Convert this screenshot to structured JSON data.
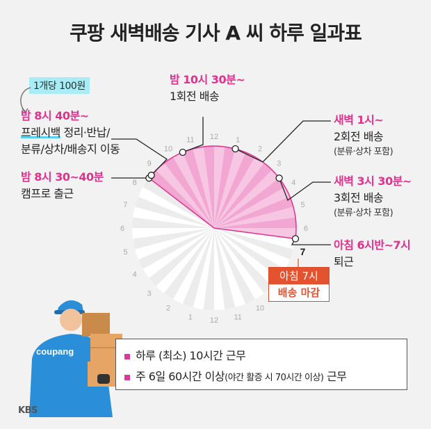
{
  "title": "쿠팡 새벽배송 기사 A 씨 하루 일과표",
  "fee_note": "1개당 100원",
  "labels": {
    "t1_time": "밤 8시 30~40분",
    "t1_desc": "캠프로 출근",
    "t2_time": "밤 8시 40분~",
    "t2_desc_hl": "프레시백",
    "t2_desc_rest": " 정리·반납/",
    "t2_desc2": "분류/상차/배송지 이동",
    "t3_time": "밤 10시 30분~",
    "t3_desc": "1회전 배송",
    "t4_time": "새벽 1시~",
    "t4_desc": "2회전 배송",
    "t4_sub": "(분류·상차 포함)",
    "t5_time": "새벽 3시 30분~",
    "t5_desc": "3회전 배송",
    "t5_sub": "(분류·상차 포함)",
    "t6_time": "아침 6시반~7시",
    "t6_desc": "퇴근"
  },
  "end_box": {
    "line1": "아침 7시",
    "line2": "배송 마감"
  },
  "clock": {
    "numbers": [
      "12",
      "1",
      "2",
      "3",
      "4",
      "5",
      "6",
      "7",
      "8",
      "9",
      "10",
      "11",
      "12",
      "1",
      "2",
      "3",
      "4",
      "5",
      "6",
      "7",
      "8",
      "9",
      "10",
      "11"
    ],
    "highlight_color": "#f4b8dc",
    "accent_color": "#e0318e"
  },
  "worker": {
    "logo_text": "coupang"
  },
  "info": {
    "row1_main": "하루 (최소) 10시간 근무",
    "row2_a": "주 6일 60시간 이상",
    "row2_b": "(야간 활증 시 70시간 이상)",
    "row2_c": " 근무"
  },
  "source": "KBS"
}
